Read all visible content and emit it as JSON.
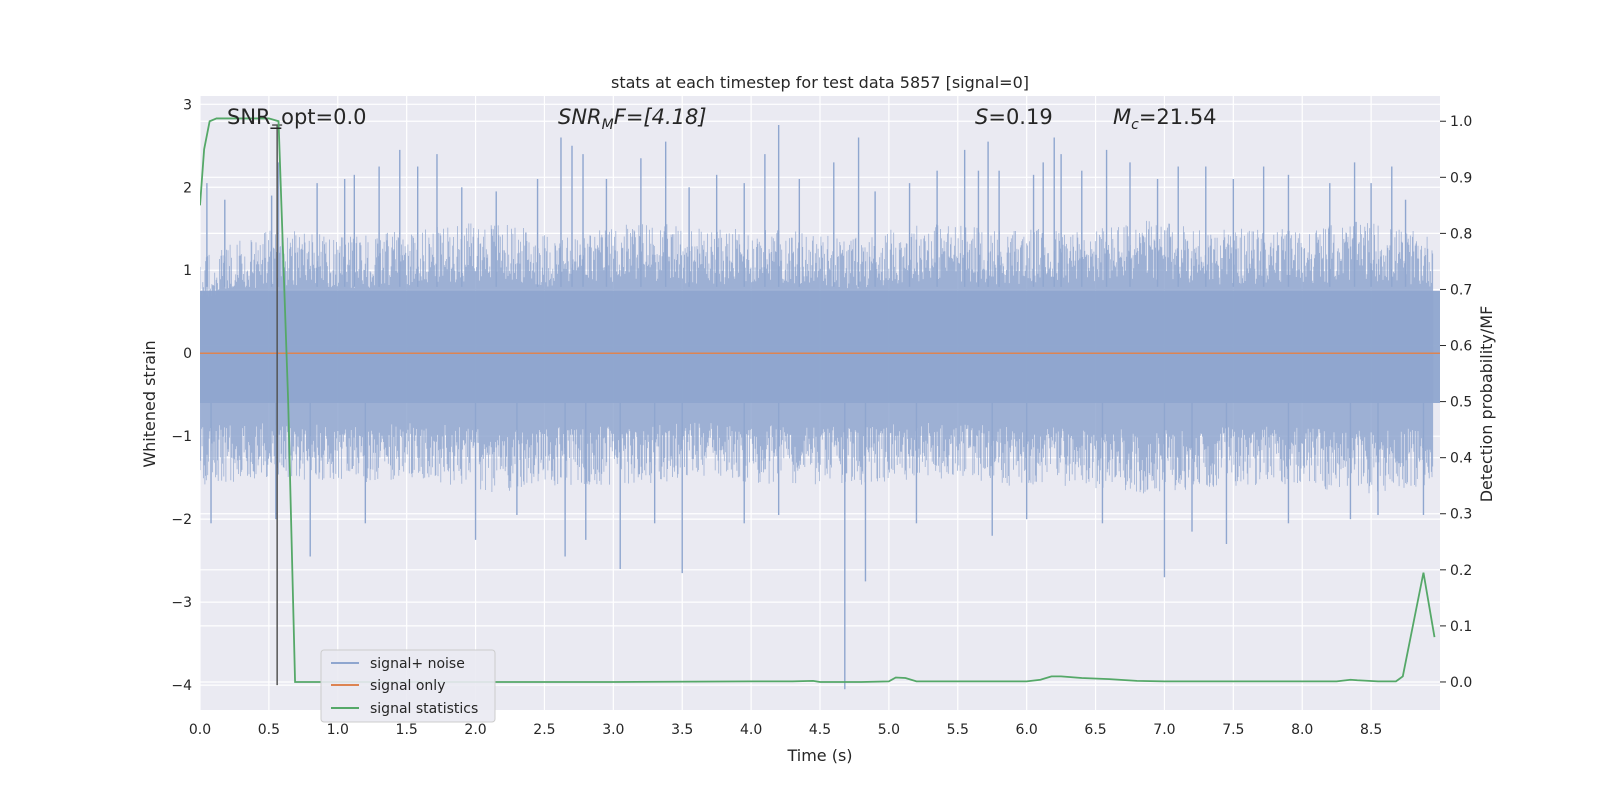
{
  "chart_data": {
    "type": "line",
    "title": "stats at each timestep for test data 5857 [signal=0]",
    "xlabel": "Time (s)",
    "ylabel_left": "Whitened strain",
    "ylabel_right": "Detection probability/MF",
    "xlim": [
      0.0,
      9.0
    ],
    "ylim_left": [
      -4.3,
      3.1
    ],
    "ylim_right": [
      -0.05,
      1.045
    ],
    "x_ticks": [
      0.0,
      0.5,
      1.0,
      1.5,
      2.0,
      2.5,
      3.0,
      3.5,
      4.0,
      4.5,
      5.0,
      5.5,
      6.0,
      6.5,
      7.0,
      7.5,
      8.0,
      8.5
    ],
    "x_tick_labels": [
      "0.0",
      "0.5",
      "1.0",
      "1.5",
      "2.0",
      "2.5",
      "3.0",
      "3.5",
      "4.0",
      "4.5",
      "5.0",
      "5.5",
      "6.0",
      "6.5",
      "7.0",
      "7.5",
      "8.0",
      "8.5"
    ],
    "y_left_ticks": [
      3,
      2,
      1,
      0,
      -1,
      -2,
      -3,
      -4
    ],
    "y_left_tick_labels": [
      "3",
      "2",
      "1",
      "0",
      "−1",
      "−2",
      "−3",
      "−4"
    ],
    "y_right_ticks": [
      1.0,
      0.9,
      0.8,
      0.7,
      0.6,
      0.5,
      0.4,
      0.3,
      0.2,
      0.1,
      0.0
    ],
    "y_right_tick_labels": [
      "1.0",
      "0.9",
      "0.8",
      "0.7",
      "0.6",
      "0.5",
      "0.4",
      "0.3",
      "0.2",
      "0.1",
      "0.0"
    ],
    "grid": true,
    "legend_position": "lower-left",
    "annotations": {
      "snr_opt": "SNR_opt=0.0",
      "snr_mf_main": "SNR",
      "snr_mf_sub": "M",
      "snr_mf_rest": "F=[4.18]",
      "s_var": "S",
      "s_rest": "=0.19",
      "mc_var": "M",
      "mc_sub": "c",
      "mc_rest": "=21.54"
    },
    "marker_line": {
      "x": 0.56,
      "y_top": 2.75,
      "y_bottom": -4.0
    },
    "series": [
      {
        "name": "signal+ noise",
        "color": "#8fa6cf",
        "axis": "left",
        "style": "dense-noise",
        "envelope_upper": [
          1.2,
          1.5,
          1.4,
          1.5,
          1.6,
          1.4,
          1.6,
          1.5,
          1.5,
          1.4,
          1.6,
          1.5,
          1.5,
          1.6,
          1.5,
          1.5,
          1.6,
          1.4
        ],
        "envelope_lower": [
          -1.6,
          -1.5,
          -1.6,
          -1.5,
          -1.7,
          -1.6,
          -1.6,
          -1.5,
          -1.6,
          -1.6,
          -1.5,
          -1.6,
          -1.6,
          -1.7,
          -1.6,
          -1.6,
          -1.7,
          -1.6
        ],
        "spikes": [
          [
            0.05,
            2.05
          ],
          [
            0.18,
            1.85
          ],
          [
            0.52,
            1.9
          ],
          [
            0.57,
            2.3
          ],
          [
            0.85,
            2.05
          ],
          [
            1.05,
            2.1
          ],
          [
            1.12,
            2.15
          ],
          [
            1.3,
            2.25
          ],
          [
            1.45,
            2.45
          ],
          [
            1.58,
            2.25
          ],
          [
            1.72,
            2.4
          ],
          [
            1.9,
            2.0
          ],
          [
            2.15,
            1.95
          ],
          [
            2.45,
            2.1
          ],
          [
            2.62,
            2.6
          ],
          [
            2.7,
            2.5
          ],
          [
            2.78,
            2.4
          ],
          [
            2.95,
            2.1
          ],
          [
            3.2,
            2.35
          ],
          [
            3.38,
            2.55
          ],
          [
            3.55,
            2.0
          ],
          [
            3.75,
            2.15
          ],
          [
            3.95,
            2.05
          ],
          [
            4.1,
            2.4
          ],
          [
            4.2,
            2.75
          ],
          [
            4.35,
            2.1
          ],
          [
            4.6,
            2.3
          ],
          [
            4.78,
            2.6
          ],
          [
            4.9,
            1.95
          ],
          [
            5.15,
            2.05
          ],
          [
            5.35,
            2.2
          ],
          [
            5.55,
            2.45
          ],
          [
            5.65,
            2.2
          ],
          [
            5.72,
            2.55
          ],
          [
            5.8,
            2.2
          ],
          [
            6.05,
            2.15
          ],
          [
            6.12,
            2.3
          ],
          [
            6.2,
            2.6
          ],
          [
            6.25,
            2.4
          ],
          [
            6.4,
            2.2
          ],
          [
            6.58,
            2.45
          ],
          [
            6.75,
            2.3
          ],
          [
            6.95,
            2.1
          ],
          [
            7.1,
            2.25
          ],
          [
            7.3,
            2.25
          ],
          [
            7.5,
            2.1
          ],
          [
            7.72,
            2.25
          ],
          [
            7.9,
            2.15
          ],
          [
            8.2,
            2.05
          ],
          [
            8.38,
            2.3
          ],
          [
            8.5,
            2.05
          ],
          [
            8.65,
            2.25
          ],
          [
            8.75,
            1.85
          ],
          [
            0.08,
            -2.05
          ],
          [
            0.55,
            -2.0
          ],
          [
            0.8,
            -2.45
          ],
          [
            1.2,
            -2.05
          ],
          [
            2.0,
            -2.25
          ],
          [
            2.3,
            -1.95
          ],
          [
            2.65,
            -2.45
          ],
          [
            2.8,
            -2.25
          ],
          [
            3.05,
            -2.6
          ],
          [
            3.3,
            -2.05
          ],
          [
            3.5,
            -2.65
          ],
          [
            3.95,
            -2.05
          ],
          [
            4.2,
            -1.95
          ],
          [
            4.68,
            -4.05
          ],
          [
            4.83,
            -2.75
          ],
          [
            5.2,
            -2.05
          ],
          [
            5.75,
            -2.2
          ],
          [
            6.0,
            -2.0
          ],
          [
            6.55,
            -2.05
          ],
          [
            7.0,
            -2.7
          ],
          [
            7.2,
            -2.15
          ],
          [
            7.45,
            -2.3
          ],
          [
            7.9,
            -2.05
          ],
          [
            8.35,
            -2.0
          ],
          [
            8.55,
            -1.95
          ],
          [
            8.88,
            -1.95
          ]
        ]
      },
      {
        "name": "signal only",
        "color": "#dd8452",
        "axis": "left",
        "x": [
          0.0,
          9.0
        ],
        "y": [
          0.0,
          0.0
        ]
      },
      {
        "name": "signal statistics",
        "color": "#55a868",
        "axis": "right",
        "x": [
          0.0,
          0.03,
          0.07,
          0.12,
          0.3,
          0.5,
          0.57,
          0.64,
          0.69,
          1.0,
          2.0,
          3.0,
          4.0,
          4.3,
          4.45,
          4.5,
          4.8,
          5.0,
          5.05,
          5.12,
          5.2,
          5.5,
          6.0,
          6.1,
          6.18,
          6.25,
          6.4,
          6.6,
          6.8,
          7.0,
          7.5,
          8.0,
          8.25,
          8.35,
          8.4,
          8.55,
          8.68,
          8.73,
          8.88,
          8.96
        ],
        "y": [
          0.85,
          0.95,
          1.0,
          1.005,
          1.005,
          1.005,
          1.0,
          0.5,
          0.0,
          0.0,
          0.0,
          0.0,
          0.001,
          0.001,
          0.002,
          0.0,
          0.0,
          0.001,
          0.008,
          0.007,
          0.001,
          0.001,
          0.001,
          0.004,
          0.01,
          0.01,
          0.007,
          0.005,
          0.002,
          0.001,
          0.001,
          0.001,
          0.001,
          0.004,
          0.003,
          0.001,
          0.001,
          0.01,
          0.195,
          0.08
        ]
      }
    ]
  }
}
